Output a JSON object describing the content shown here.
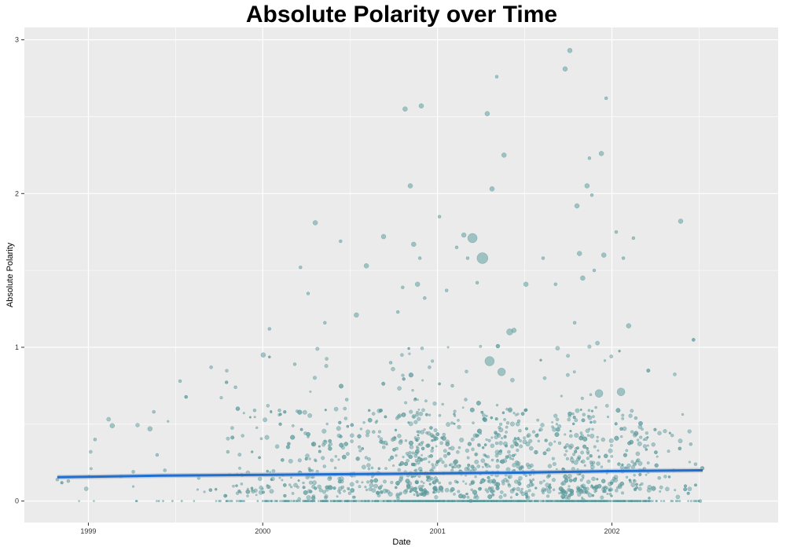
{
  "chart_data": {
    "type": "scatter",
    "title": "Absolute Polarity over Time",
    "xlabel": "Date",
    "ylabel": "Absolute Polarity",
    "x_scale": "date",
    "xlim": [
      "1998-08-20",
      "2002-12-15"
    ],
    "ylim": [
      -0.14,
      3.08
    ],
    "x_ticks": [
      {
        "value": "1999-01-01",
        "label": "1999"
      },
      {
        "value": "2000-01-01",
        "label": "2000"
      },
      {
        "value": "2001-01-01",
        "label": "2001"
      },
      {
        "value": "2002-01-01",
        "label": "2002"
      }
    ],
    "y_ticks": [
      {
        "value": 0,
        "label": "0"
      },
      {
        "value": 1,
        "label": "1"
      },
      {
        "value": 2,
        "label": "2"
      },
      {
        "value": 3,
        "label": "3"
      }
    ],
    "grid": true,
    "legend": "none",
    "colors": {
      "panel": "#EBEBEB",
      "grid": "#FFFFFF",
      "point_fill": "#5F9EA0",
      "point_stroke": "#4A8A8C",
      "trend": "#1F6FD0",
      "ribbon": "#A9B8C8"
    },
    "trend_line": {
      "method": "smooth",
      "x": [
        "1998-10-28",
        "1999-06-01",
        "2000-01-01",
        "2000-07-01",
        "2001-01-01",
        "2001-07-01",
        "2002-01-01",
        "2002-07-10"
      ],
      "y": [
        0.155,
        0.165,
        0.17,
        0.175,
        0.18,
        0.185,
        0.195,
        0.2
      ]
    },
    "series": [
      {
        "x": [
          "1998-10-28",
          "1998-11-20",
          "1999-01-15",
          "1999-02-20",
          "1999-03-10",
          "1999-04-05",
          "1999-05-10",
          "1999-05-18",
          "1999-05-25",
          "1999-06-10",
          "1999-07-12",
          "1999-08-20",
          "1999-09-15",
          "1999-10-20",
          "1999-11-05",
          "1999-12-15",
          "2000-01-02",
          "2000-01-15",
          "2000-02-05",
          "2000-03-08",
          "2000-03-20",
          "2000-04-05",
          "2000-04-20",
          "2000-05-10",
          "2000-06-12",
          "2000-06-25",
          "2000-07-15",
          "2000-08-05",
          "2000-08-20",
          "2000-09-10",
          "2000-09-25",
          "2000-10-10",
          "2000-10-20",
          "2000-10-25",
          "2000-11-05",
          "2000-11-12",
          "2000-11-20",
          "2000-11-25",
          "2000-11-28",
          "2000-12-05",
          "2001-01-05",
          "2001-01-20",
          "2001-02-10",
          "2001-02-25",
          "2001-03-05",
          "2001-03-15",
          "2001-03-25",
          "2001-04-05",
          "2001-04-15",
          "2001-04-20",
          "2001-04-25",
          "2001-05-05",
          "2001-05-15",
          "2001-05-20",
          "2001-06-01",
          "2001-06-10",
          "2001-06-20",
          "2001-07-05",
          "2001-08-10",
          "2001-09-05",
          "2001-09-25",
          "2001-10-05",
          "2001-10-15",
          "2001-10-20",
          "2001-10-25",
          "2001-11-01",
          "2001-11-10",
          "2001-11-15",
          "2001-11-20",
          "2001-11-25",
          "2001-12-05",
          "2001-12-10",
          "2001-12-15",
          "2001-12-20",
          "2002-01-10",
          "2002-01-20",
          "2002-01-25",
          "2002-02-05",
          "2002-02-15",
          "2002-02-20",
          "2002-03-10",
          "2002-04-10",
          "2002-05-10",
          "2002-05-25",
          "2002-06-15",
          "2002-06-25",
          "2002-07-05",
          "2000-12-15",
          "2001-02-01",
          "2001-03-01"
        ],
        "y": [
          0.14,
          0.13,
          0.4,
          0.49,
          0.16,
          0.19,
          0.47,
          0.58,
          0.3,
          0.2,
          0.78,
          0.15,
          0.87,
          0.32,
          0.74,
          0.59,
          0.95,
          1.12,
          0.59,
          0.89,
          1.52,
          1.35,
          1.81,
          1.16,
          1.69,
          0.66,
          1.21,
          1.53,
          0.45,
          1.72,
          0.9,
          1.23,
          1.39,
          2.55,
          2.05,
          1.67,
          1.41,
          1.58,
          2.57,
          1.32,
          1.85,
          1.37,
          1.65,
          1.73,
          1.58,
          1.71,
          1.42,
          1.58,
          2.52,
          0.91,
          2.03,
          2.76,
          0.84,
          2.25,
          1.1,
          1.11,
          0.52,
          1.41,
          1.58,
          1.41,
          2.81,
          2.93,
          1.16,
          1.92,
          1.61,
          1.45,
          2.05,
          2.23,
          1.99,
          1.5,
          0.7,
          2.26,
          1.6,
          2.62,
          1.75,
          0.71,
          1.58,
          1.14,
          1.71,
          0.54,
          0.21,
          0.15,
          0.2,
          1.82,
          0.37,
          0.24,
          0.0,
          0.87,
          0.75,
          0.66
        ],
        "size": [
          2,
          2,
          2,
          3,
          2,
          2,
          3,
          2,
          2,
          2,
          2,
          2,
          2,
          2,
          2,
          2,
          3,
          2,
          2,
          2,
          2,
          2,
          3,
          2,
          2,
          2,
          3,
          3,
          2,
          3,
          2,
          2,
          2,
          3,
          3,
          3,
          3,
          2,
          3,
          2,
          2,
          2,
          2,
          3,
          2,
          6,
          2,
          7,
          3,
          6,
          3,
          2,
          5,
          3,
          4,
          3,
          2,
          3,
          2,
          2,
          3,
          3,
          2,
          3,
          3,
          3,
          3,
          2,
          2,
          2,
          5,
          3,
          3,
          2,
          2,
          5,
          2,
          3,
          2,
          2,
          2,
          2,
          2,
          3,
          2,
          2,
          2,
          2,
          2,
          2
        ]
      }
    ]
  }
}
